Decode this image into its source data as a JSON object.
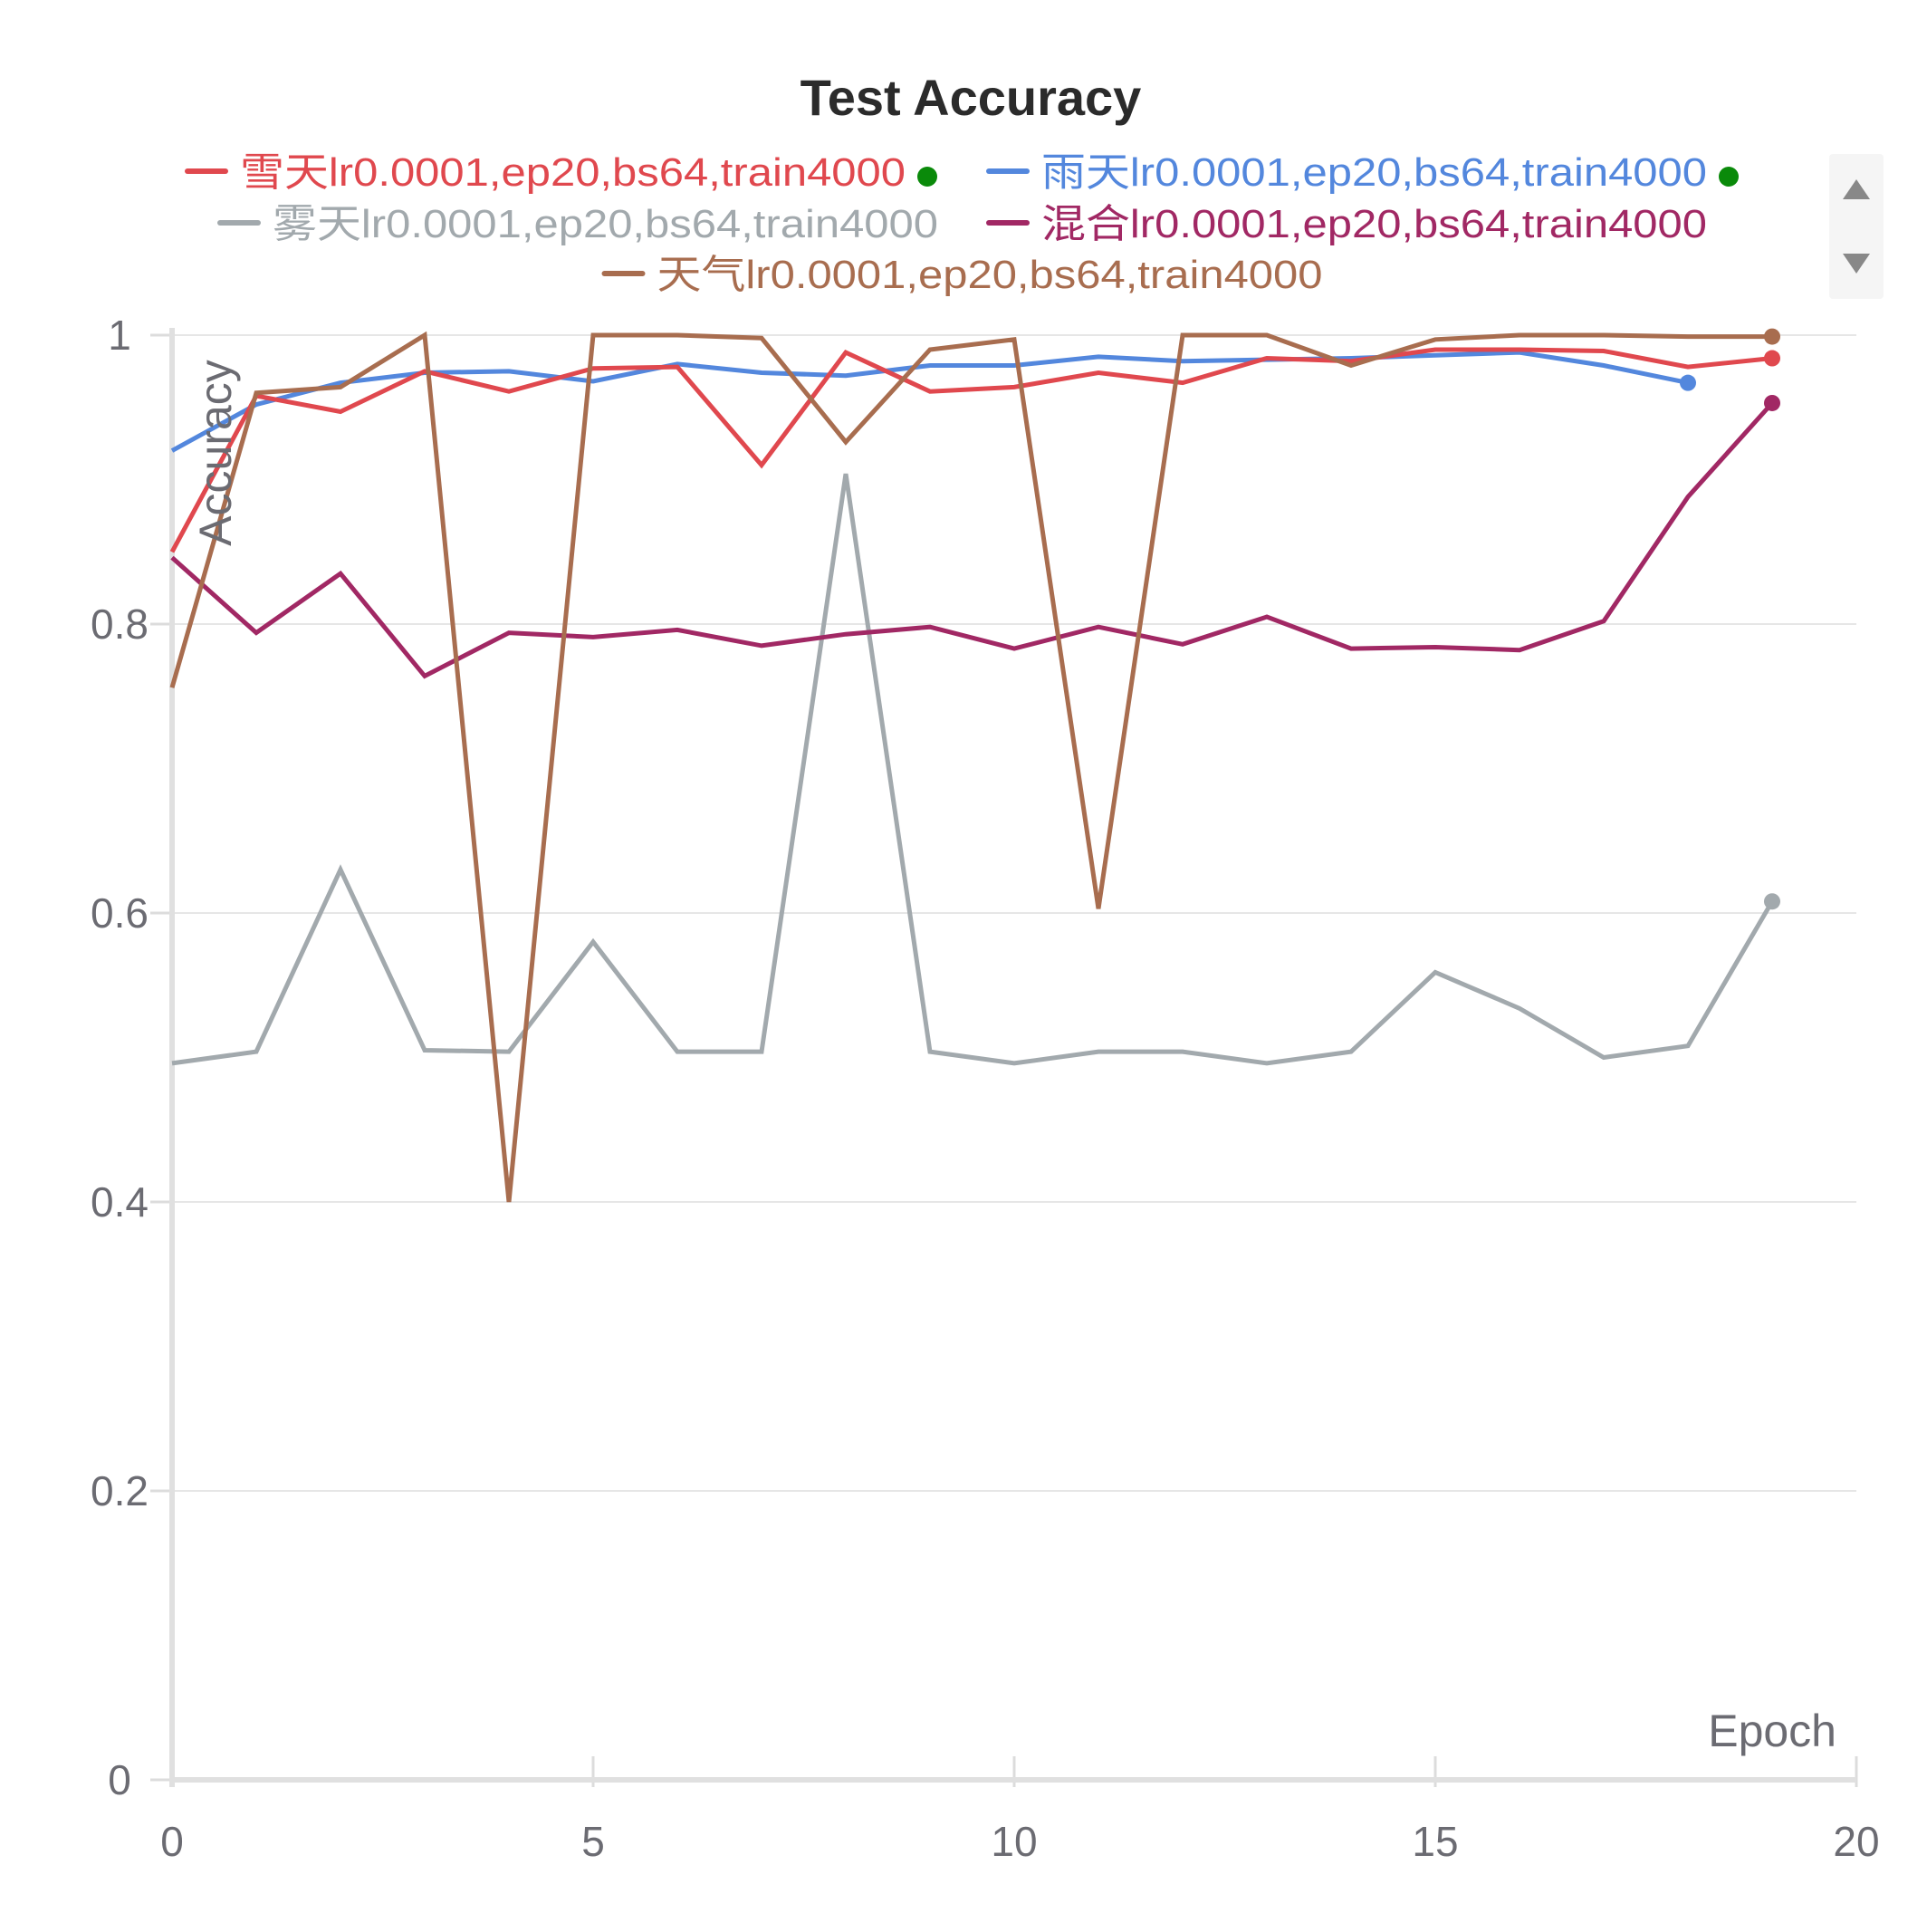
{
  "chart_data": {
    "type": "line",
    "title": "Test Accuracy",
    "xlabel": "Epoch",
    "ylabel": "Accuracy",
    "xlim": [
      0,
      20
    ],
    "ylim": [
      0,
      1
    ],
    "xticks": [
      0,
      5,
      10,
      15,
      20
    ],
    "yticks": [
      0,
      0.2,
      0.4,
      0.6,
      0.8,
      1
    ],
    "ytick_labels": [
      "0",
      "0.2",
      "0.4",
      "0.6",
      "0.8",
      "1"
    ],
    "xtick_labels": [
      "0",
      "5",
      "10",
      "15",
      "20"
    ],
    "grid": true,
    "legend_position": "top",
    "series": [
      {
        "name": "雪天lr0.0001,ep20,bs64,train4000",
        "color": "#e0484e",
        "status_color": "#0a8a0a",
        "x": [
          0,
          1,
          2,
          3,
          4,
          5,
          6,
          7,
          8,
          9,
          10,
          11,
          12,
          13,
          14,
          15,
          16,
          17,
          18,
          19
        ],
        "values": [
          0.85,
          0.958,
          0.947,
          0.975,
          0.961,
          0.977,
          0.978,
          0.91,
          0.988,
          0.961,
          0.964,
          0.974,
          0.967,
          0.984,
          0.982,
          0.99,
          0.99,
          0.989,
          0.978,
          0.984
        ]
      },
      {
        "name": "雨天lr0.0001,ep20,bs64,train4000",
        "color": "#5387dd",
        "status_color": "#0a8a0a",
        "x": [
          0,
          1,
          2,
          3,
          4,
          5,
          6,
          7,
          8,
          9,
          10,
          11,
          12,
          13,
          14,
          15,
          16,
          17,
          18
        ],
        "values": [
          0.92,
          0.952,
          0.967,
          0.974,
          0.975,
          0.968,
          0.98,
          0.974,
          0.972,
          0.979,
          0.979,
          0.985,
          0.982,
          0.983,
          0.984,
          0.986,
          0.988,
          0.979,
          0.967
        ]
      },
      {
        "name": "雾天lr0.0001,ep20,bs64,train4000",
        "color": "#a2a9ad",
        "x": [
          0,
          1,
          2,
          3,
          4,
          5,
          6,
          7,
          8,
          9,
          10,
          11,
          12,
          13,
          14,
          15,
          16,
          17,
          18,
          19
        ],
        "values": [
          0.496,
          0.504,
          0.63,
          0.505,
          0.504,
          0.58,
          0.504,
          0.504,
          0.904,
          0.504,
          0.496,
          0.504,
          0.504,
          0.496,
          0.504,
          0.559,
          0.534,
          0.5,
          0.508,
          0.608
        ]
      },
      {
        "name": "混合lr0.0001,ep20,bs64,train4000",
        "color": "#a12864",
        "x": [
          0,
          1,
          2,
          3,
          4,
          5,
          6,
          7,
          8,
          9,
          10,
          11,
          12,
          13,
          14,
          15,
          16,
          17,
          18,
          19
        ],
        "values": [
          0.846,
          0.794,
          0.835,
          0.764,
          0.794,
          0.791,
          0.796,
          0.785,
          0.793,
          0.798,
          0.783,
          0.798,
          0.786,
          0.805,
          0.783,
          0.784,
          0.782,
          0.802,
          0.888,
          0.953
        ]
      },
      {
        "name": "天气lr0.0001,ep20,bs64,train4000",
        "color": "#a86d4f",
        "x": [
          0,
          1,
          2,
          3,
          4,
          5,
          6,
          7,
          8,
          9,
          10,
          11,
          12,
          13,
          14,
          15,
          16,
          17,
          18,
          19
        ],
        "values": [
          0.756,
          0.96,
          0.964,
          1.0,
          0.4,
          1.0,
          1.0,
          0.998,
          0.926,
          0.99,
          0.997,
          0.603,
          1.0,
          1.0,
          0.979,
          0.997,
          1.0,
          1.0,
          0.999,
          0.999
        ]
      }
    ]
  },
  "legend_controls": {
    "scroll_up_icon": "triangle-up-icon",
    "scroll_down_icon": "triangle-down-icon",
    "icon_color": "#888888",
    "panel_color": "#f5f5f5"
  }
}
